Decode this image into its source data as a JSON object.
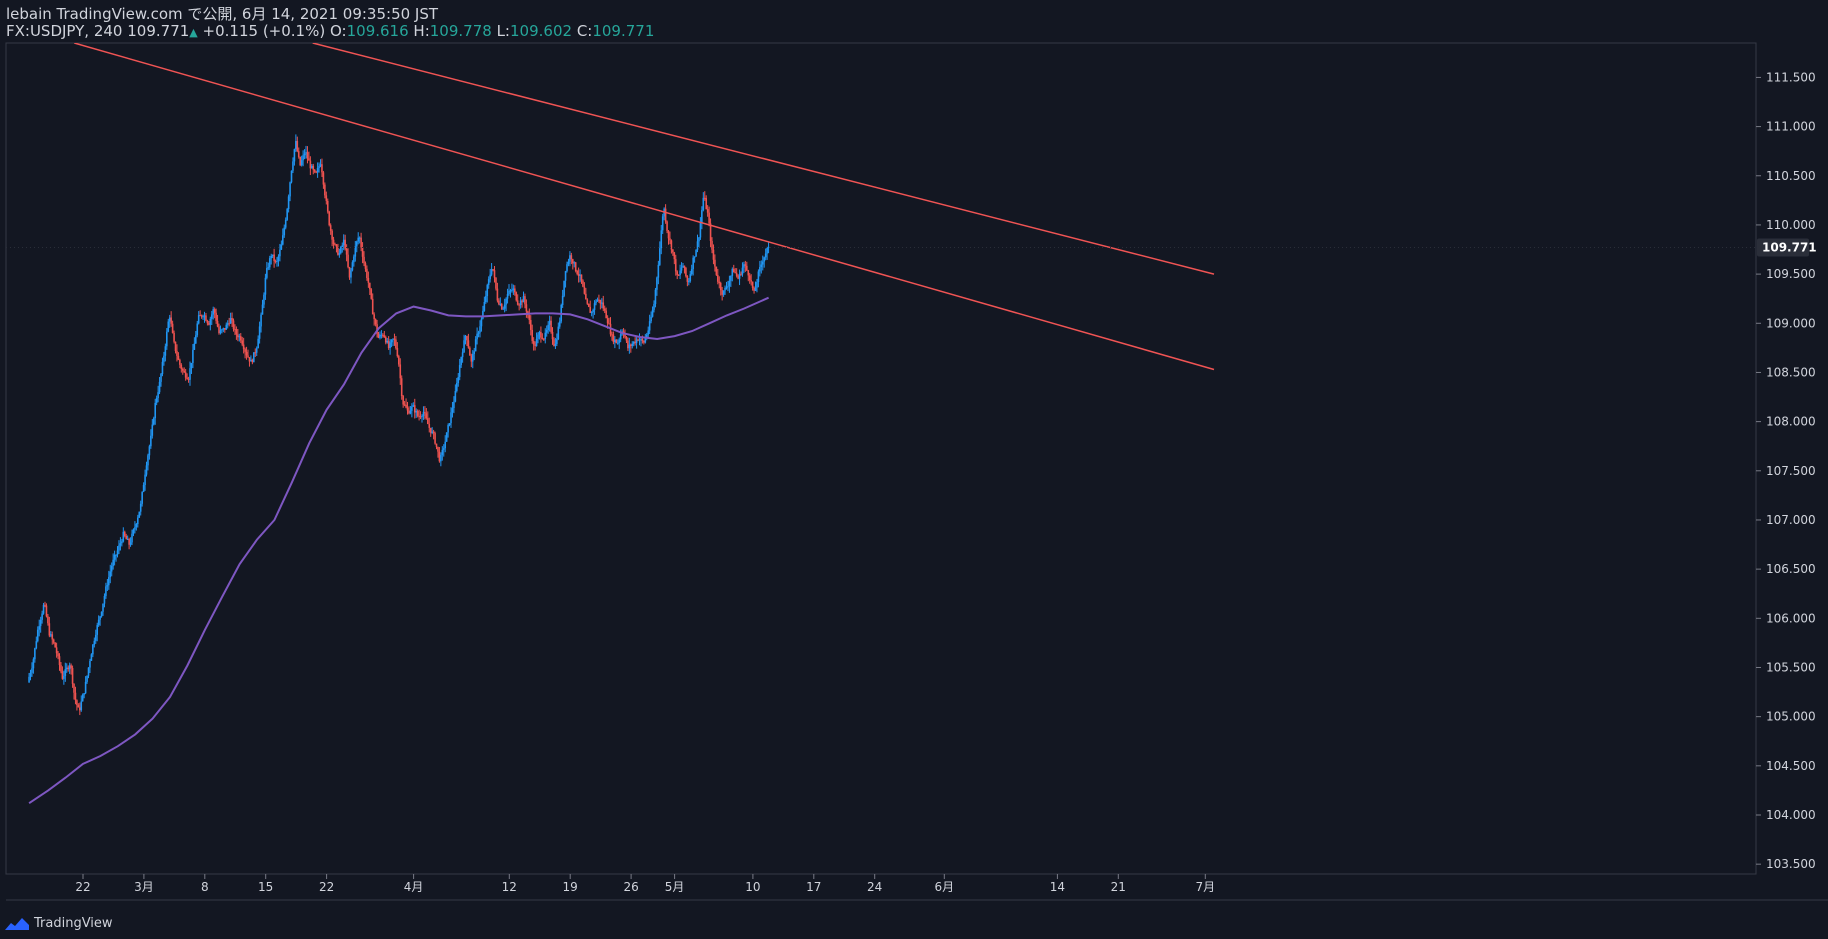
{
  "header": {
    "title_line": "lebain TradingView.com で公開, 6月 14, 2021 09:35:50 JST",
    "symbol": "FX:USDJPY, 240",
    "last": "109.771",
    "change": "+0.115 (+0.1%)",
    "o_label": "O:",
    "o_value": "109.616",
    "h_label": "H:",
    "h_value": "109.778",
    "l_label": "L:",
    "l_value": "109.602",
    "c_label": "C:",
    "c_value": "109.771"
  },
  "footer": {
    "brand": "TradingView",
    "icon": "tradingview-logo-icon"
  },
  "colors": {
    "background": "#131722",
    "up": "#2196f3",
    "down": "#ef5350",
    "trendline": "#f05454",
    "ma": "#7e57c2",
    "grid": "#1e222d",
    "axis_text": "#d1d4dc"
  },
  "chart_data": {
    "type": "candlestick",
    "symbol": "FX:USDJPY",
    "interval": "240",
    "ylim": [
      103.4,
      111.85
    ],
    "y_ticks": [
      "103.500",
      "104.000",
      "104.500",
      "105.000",
      "105.500",
      "106.000",
      "106.500",
      "107.000",
      "107.500",
      "108.000",
      "108.500",
      "109.000",
      "109.500",
      "110.000",
      "110.500",
      "111.000",
      "111.500"
    ],
    "x_ticks": [
      {
        "label": "22",
        "day": 0
      },
      {
        "label": "3月",
        "day": 7
      },
      {
        "label": "8",
        "day": 14
      },
      {
        "label": "15",
        "day": 21
      },
      {
        "label": "22",
        "day": 28
      },
      {
        "label": "4月",
        "day": 38
      },
      {
        "label": "12",
        "day": 49
      },
      {
        "label": "19",
        "day": 56
      },
      {
        "label": "26",
        "day": 63
      },
      {
        "label": "5月",
        "day": 68
      },
      {
        "label": "10",
        "day": 77
      },
      {
        "label": "17",
        "day": 84
      },
      {
        "label": "24",
        "day": 91
      },
      {
        "label": "6月",
        "day": 99
      },
      {
        "label": "14",
        "day": 112
      },
      {
        "label": "21",
        "day": 119
      },
      {
        "label": "7月",
        "day": 129
      }
    ],
    "last_price": "109.771",
    "price_path": [
      [
        -6.2,
        105.35
      ],
      [
        -5.6,
        105.55
      ],
      [
        -5,
        105.9
      ],
      [
        -4.3,
        106.15
      ],
      [
        -3.7,
        105.85
      ],
      [
        -3,
        105.7
      ],
      [
        -2.2,
        105.4
      ],
      [
        -1.3,
        105.55
      ],
      [
        -0.8,
        105.2
      ],
      [
        -0.3,
        105.05
      ],
      [
        0.4,
        105.3
      ],
      [
        1,
        105.6
      ],
      [
        1.6,
        105.85
      ],
      [
        2.2,
        106.05
      ],
      [
        2.8,
        106.3
      ],
      [
        3.5,
        106.55
      ],
      [
        4.2,
        106.7
      ],
      [
        4.8,
        106.85
      ],
      [
        5.5,
        106.75
      ],
      [
        6.2,
        106.95
      ],
      [
        6.8,
        107.15
      ],
      [
        7.4,
        107.55
      ],
      [
        8,
        107.85
      ],
      [
        8.5,
        108.2
      ],
      [
        9,
        108.4
      ],
      [
        9.5,
        108.7
      ],
      [
        10.1,
        109.1
      ],
      [
        10.6,
        108.8
      ],
      [
        11.2,
        108.6
      ],
      [
        11.7,
        108.5
      ],
      [
        12.3,
        108.45
      ],
      [
        12.9,
        108.75
      ],
      [
        13.4,
        109.05
      ],
      [
        14,
        109.1
      ],
      [
        14.6,
        109.0
      ],
      [
        15.2,
        109.15
      ],
      [
        15.8,
        108.9
      ],
      [
        16.5,
        108.95
      ],
      [
        17.1,
        109.05
      ],
      [
        17.7,
        108.9
      ],
      [
        18.3,
        108.85
      ],
      [
        18.9,
        108.7
      ],
      [
        19.5,
        108.6
      ],
      [
        20.1,
        108.75
      ],
      [
        20.7,
        109.1
      ],
      [
        21.2,
        109.5
      ],
      [
        21.8,
        109.7
      ],
      [
        22.4,
        109.6
      ],
      [
        23,
        109.8
      ],
      [
        23.6,
        110.15
      ],
      [
        24.1,
        110.55
      ],
      [
        24.6,
        110.85
      ],
      [
        25.1,
        110.6
      ],
      [
        25.7,
        110.75
      ],
      [
        26.3,
        110.6
      ],
      [
        26.9,
        110.5
      ],
      [
        27.5,
        110.65
      ],
      [
        28,
        110.3
      ],
      [
        28.5,
        110.0
      ],
      [
        29,
        109.8
      ],
      [
        29.6,
        109.7
      ],
      [
        30.2,
        109.85
      ],
      [
        30.8,
        109.45
      ],
      [
        31.4,
        109.75
      ],
      [
        31.9,
        109.9
      ],
      [
        32.5,
        109.6
      ],
      [
        33,
        109.4
      ],
      [
        33.5,
        109.1
      ],
      [
        34.1,
        108.85
      ],
      [
        34.7,
        108.9
      ],
      [
        35.3,
        108.75
      ],
      [
        35.9,
        108.85
      ],
      [
        36.4,
        108.65
      ],
      [
        36.9,
        108.2
      ],
      [
        37.5,
        108.1
      ],
      [
        38.1,
        108.15
      ],
      [
        38.7,
        108.05
      ],
      [
        39.3,
        108.1
      ],
      [
        39.9,
        107.95
      ],
      [
        40.5,
        107.85
      ],
      [
        41.2,
        107.6
      ],
      [
        41.8,
        107.8
      ],
      [
        42.4,
        108.05
      ],
      [
        43,
        108.3
      ],
      [
        43.6,
        108.65
      ],
      [
        44.2,
        108.9
      ],
      [
        44.8,
        108.6
      ],
      [
        45.4,
        108.85
      ],
      [
        46,
        109.05
      ],
      [
        46.6,
        109.35
      ],
      [
        47.2,
        109.6
      ],
      [
        47.8,
        109.25
      ],
      [
        48.4,
        109.15
      ],
      [
        49,
        109.3
      ],
      [
        49.6,
        109.35
      ],
      [
        50.2,
        109.2
      ],
      [
        50.8,
        109.25
      ],
      [
        51.4,
        109.05
      ],
      [
        52,
        108.75
      ],
      [
        52.6,
        108.9
      ],
      [
        53.2,
        108.85
      ],
      [
        53.8,
        109.0
      ],
      [
        54.4,
        108.75
      ],
      [
        55,
        109.05
      ],
      [
        55.6,
        109.55
      ],
      [
        56.2,
        109.7
      ],
      [
        56.8,
        109.55
      ],
      [
        57.4,
        109.45
      ],
      [
        58,
        109.2
      ],
      [
        58.6,
        109.1
      ],
      [
        59.2,
        109.25
      ],
      [
        59.8,
        109.2
      ],
      [
        60.4,
        109.05
      ],
      [
        61,
        108.85
      ],
      [
        61.6,
        108.8
      ],
      [
        62.2,
        108.95
      ],
      [
        62.8,
        108.75
      ],
      [
        63.4,
        108.8
      ],
      [
        64,
        108.85
      ],
      [
        64.6,
        108.8
      ],
      [
        65.2,
        108.95
      ],
      [
        65.8,
        109.2
      ],
      [
        66.4,
        109.7
      ],
      [
        66.9,
        110.2
      ],
      [
        67.4,
        109.9
      ],
      [
        67.9,
        109.75
      ],
      [
        68.5,
        109.45
      ],
      [
        69.1,
        109.6
      ],
      [
        69.7,
        109.4
      ],
      [
        70.3,
        109.65
      ],
      [
        70.9,
        109.85
      ],
      [
        71.5,
        110.3
      ],
      [
        72,
        110.1
      ],
      [
        72.5,
        109.7
      ],
      [
        73.1,
        109.45
      ],
      [
        73.7,
        109.3
      ],
      [
        74.3,
        109.4
      ],
      [
        74.9,
        109.55
      ],
      [
        75.5,
        109.45
      ],
      [
        76.1,
        109.6
      ],
      [
        76.7,
        109.5
      ],
      [
        77.3,
        109.3
      ],
      [
        77.8,
        109.5
      ],
      [
        78.3,
        109.65
      ],
      [
        78.8,
        109.75
      ]
    ],
    "ma_path": [
      [
        -6.2,
        104.12
      ],
      [
        -4,
        104.25
      ],
      [
        -2,
        104.38
      ],
      [
        0,
        104.52
      ],
      [
        2,
        104.6
      ],
      [
        4,
        104.7
      ],
      [
        6,
        104.82
      ],
      [
        8,
        104.98
      ],
      [
        10,
        105.2
      ],
      [
        12,
        105.52
      ],
      [
        14,
        105.88
      ],
      [
        16,
        106.22
      ],
      [
        18,
        106.55
      ],
      [
        20,
        106.8
      ],
      [
        22,
        107.0
      ],
      [
        24,
        107.38
      ],
      [
        26,
        107.78
      ],
      [
        28,
        108.12
      ],
      [
        30,
        108.38
      ],
      [
        32,
        108.7
      ],
      [
        34,
        108.95
      ],
      [
        36,
        109.1
      ],
      [
        38,
        109.17
      ],
      [
        40,
        109.13
      ],
      [
        42,
        109.08
      ],
      [
        44,
        109.07
      ],
      [
        46,
        109.07
      ],
      [
        48,
        109.08
      ],
      [
        50,
        109.09
      ],
      [
        52,
        109.1
      ],
      [
        54,
        109.1
      ],
      [
        56,
        109.09
      ],
      [
        58,
        109.04
      ],
      [
        60,
        108.97
      ],
      [
        62,
        108.9
      ],
      [
        64,
        108.86
      ],
      [
        66,
        108.84
      ],
      [
        68,
        108.87
      ],
      [
        70,
        108.92
      ],
      [
        72,
        109.0
      ],
      [
        74,
        109.08
      ],
      [
        76,
        109.15
      ],
      [
        78.8,
        109.26
      ]
    ],
    "trendlines": [
      {
        "points": [
          [
            -1,
            111.85
          ],
          [
            130,
            108.53
          ]
        ]
      },
      {
        "points": [
          [
            26.4,
            111.85
          ],
          [
            130,
            109.5
          ]
        ]
      }
    ]
  }
}
